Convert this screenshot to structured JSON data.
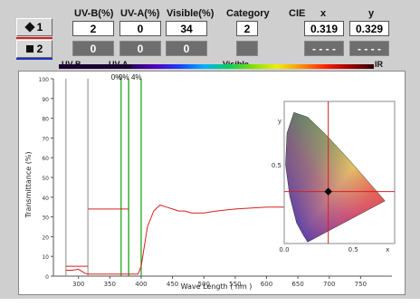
{
  "headers": {
    "uvb": "UV-B(%)",
    "uva": "UV-A(%)",
    "visible": "Visible(%)",
    "category": "Category",
    "cie": "CIE",
    "x": "x",
    "y": "y"
  },
  "row1": {
    "label": "1",
    "uvb": "2",
    "uva": "0",
    "visible": "34",
    "category": "2",
    "x": "0.319",
    "y": "0.329"
  },
  "row2": {
    "label": "2",
    "uvb": "0",
    "uva": "0",
    "visible": "0",
    "category": "",
    "x": "- - - -",
    "y": "- - - -"
  },
  "spectrum": {
    "uvb": "UV-B",
    "uva": "UV-A",
    "visible": "Visible",
    "ir": "IR"
  },
  "markers": [
    "0%",
    "0%",
    "4%"
  ],
  "colors": {
    "curve": "#d62020",
    "marker_green": "#11a011",
    "row1_line": "#d62020",
    "row2_line": "#2030c0"
  },
  "icons": {
    "row1": "diamond-icon",
    "row2": "square-icon"
  },
  "chart_data": {
    "type": "line",
    "xlabel": "Wave Length ( nm )",
    "ylabel": "Transmittance (%)",
    "xlim": [
      260,
      800
    ],
    "ylim": [
      0,
      100
    ],
    "x_ticks": [
      "300",
      "350",
      "400",
      "450",
      "500",
      "550",
      "600",
      "650",
      "700",
      "750"
    ],
    "y_ticks": [
      "100",
      "90",
      "80",
      "70",
      "60",
      "50",
      "40",
      "30",
      "20",
      "10",
      "0"
    ],
    "boundaries_nm": [
      280,
      315,
      380
    ],
    "marker_nm": [
      368,
      380,
      400
    ],
    "series": [
      {
        "x": [
          280,
          290,
          300,
          305,
          310,
          315,
          320,
          330,
          340,
          350,
          360,
          370,
          375,
          380,
          385,
          390,
          395,
          400,
          405,
          410,
          420,
          430,
          440,
          450,
          460,
          470,
          480,
          500,
          520,
          550,
          600,
          650,
          700,
          750,
          790
        ],
        "y": [
          3,
          3,
          3.5,
          2.5,
          1.5,
          1,
          1,
          1,
          1,
          1,
          1,
          1,
          1,
          1,
          1,
          1,
          1,
          5,
          15,
          25,
          33,
          36,
          35,
          34,
          33,
          33,
          32,
          32,
          33,
          34,
          35,
          35,
          35,
          36,
          36
        ]
      },
      {
        "x": [
          280,
          315
        ],
        "y": [
          5,
          5
        ]
      },
      {
        "x": [
          315,
          380
        ],
        "y": [
          34,
          34
        ]
      }
    ],
    "inset": {
      "type": "scatter",
      "xlim": [
        0,
        0.8
      ],
      "ylim": [
        0,
        0.9
      ],
      "x_ticks": [
        "0.0",
        "0.5",
        "x"
      ],
      "y_ticks": [
        "y",
        "0.5"
      ],
      "point": {
        "x": 0.319,
        "y": 0.329
      }
    }
  }
}
